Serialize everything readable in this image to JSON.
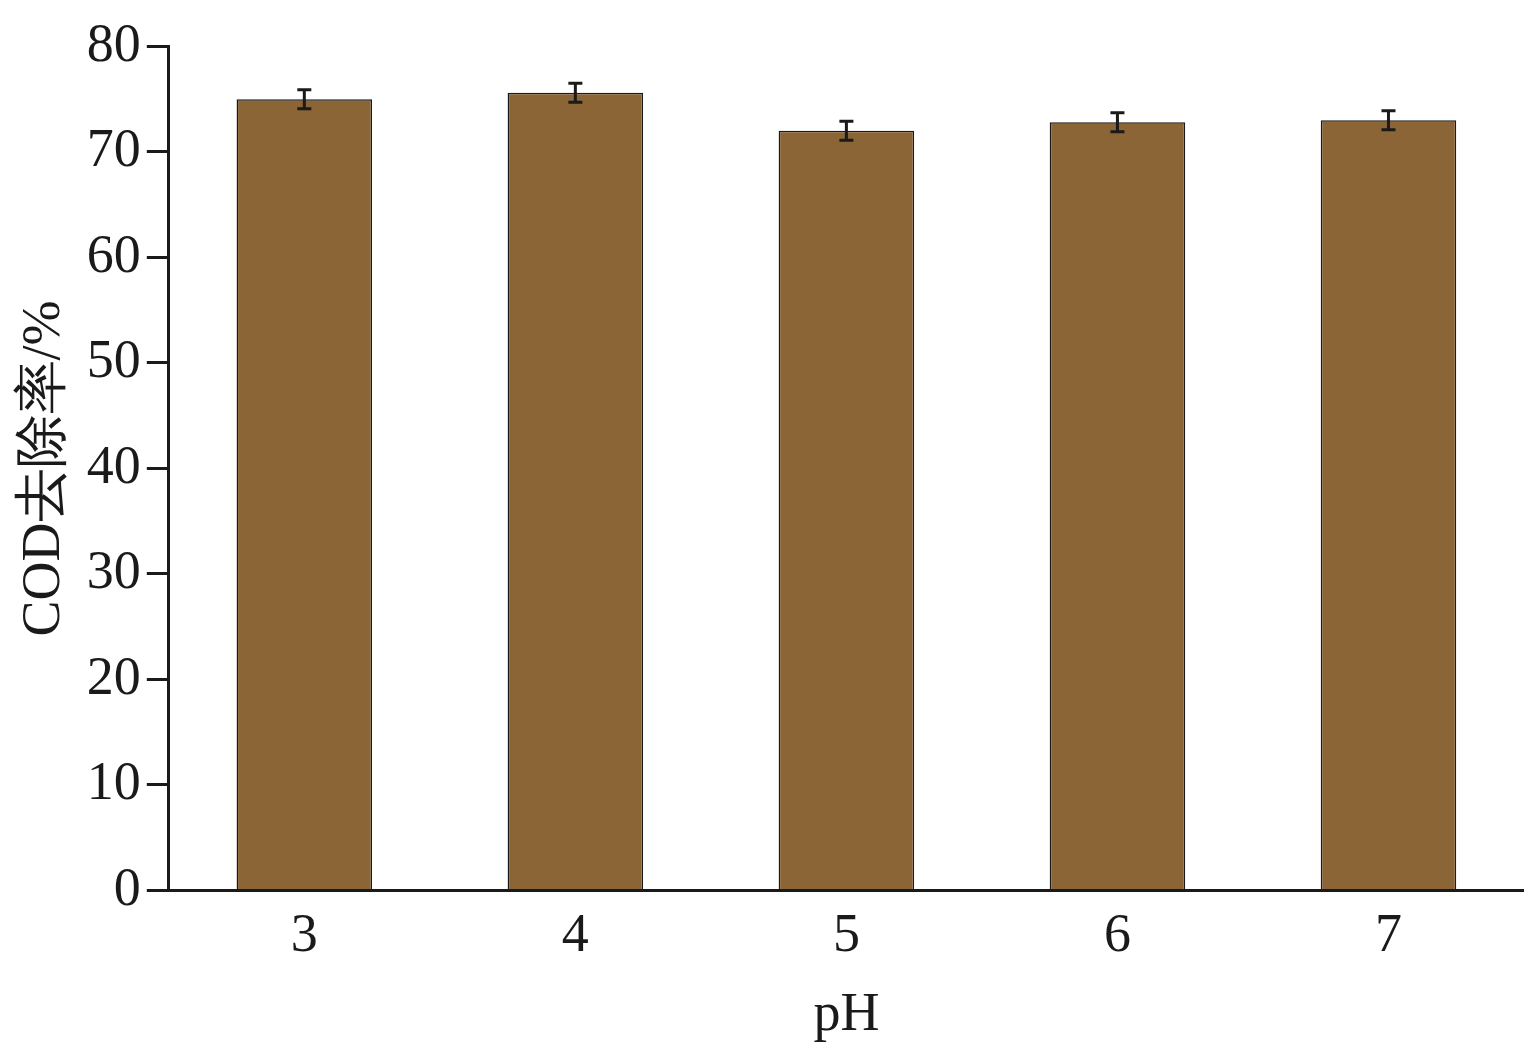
{
  "chart_data": {
    "type": "bar",
    "xlabel": "pH",
    "ylabel": "COD去除率/%",
    "categories": [
      "3",
      "4",
      "5",
      "6",
      "7"
    ],
    "values": [
      75.0,
      75.6,
      72.0,
      72.8,
      73.0
    ],
    "errors": [
      0.9,
      0.9,
      0.9,
      0.9,
      0.9
    ],
    "color": "#8b6536",
    "ylim": [
      0,
      80
    ],
    "yticks": [
      0,
      10,
      20,
      30,
      40,
      50,
      60,
      70,
      80
    ],
    "grid": false,
    "legend": false
  }
}
